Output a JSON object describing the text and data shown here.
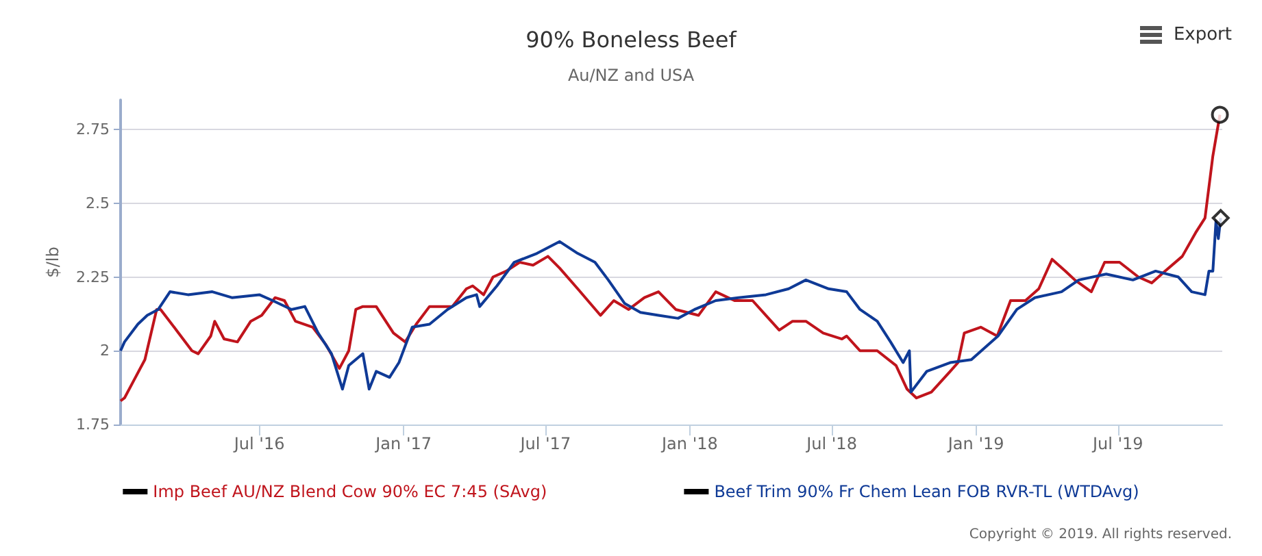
{
  "chart_data": {
    "type": "line",
    "title": "90% Boneless Beef",
    "subtitle": "Au/NZ and USA",
    "ylabel": "$/lb",
    "annotations": [
      "Export",
      "Copyright © 2019. All rights reserved."
    ],
    "xlim": [
      "2016-01-06",
      "2019-11-11"
    ],
    "xticks": [
      {
        "value": "2016-07-01",
        "label": "Jul '16"
      },
      {
        "value": "2017-01-01",
        "label": "Jan '17"
      },
      {
        "value": "2017-07-01",
        "label": "Jul '17"
      },
      {
        "value": "2018-01-01",
        "label": "Jan '18"
      },
      {
        "value": "2018-07-01",
        "label": "Jul '18"
      },
      {
        "value": "2019-01-01",
        "label": "Jan '19"
      },
      {
        "value": "2019-07-01",
        "label": "Jul '19"
      }
    ],
    "ylim": [
      1.75,
      2.85
    ],
    "yticks": [
      1.75,
      2,
      2.25,
      2.5,
      2.75
    ],
    "grid": "y",
    "legend": "bottom",
    "line_style": "solid",
    "series": [
      {
        "name": "Imp Beef AU/NZ Blend Cow 90% EC 7:45 (SAvg)",
        "color": "#c0141c",
        "x": [
          "2016-01-06",
          "2016-01-11",
          "2016-01-23",
          "2016-02-06",
          "2016-02-21",
          "2016-02-26",
          "2016-03-20",
          "2016-04-06",
          "2016-04-14",
          "2016-04-30",
          "2016-05-05",
          "2016-05-17",
          "2016-06-03",
          "2016-06-20",
          "2016-07-04",
          "2016-07-21",
          "2016-08-02",
          "2016-08-16",
          "2016-09-07",
          "2016-09-24",
          "2016-10-11",
          "2016-10-23",
          "2016-11-01",
          "2016-11-10",
          "2016-11-27",
          "2016-12-19",
          "2017-01-03",
          "2017-01-17",
          "2017-02-03",
          "2017-03-04",
          "2017-03-22",
          "2017-03-30",
          "2017-04-13",
          "2017-04-25",
          "2017-05-12",
          "2017-05-29",
          "2017-06-15",
          "2017-07-04",
          "2017-07-19",
          "2017-08-11",
          "2017-09-09",
          "2017-09-26",
          "2017-10-15",
          "2017-11-04",
          "2017-11-22",
          "2017-12-14",
          "2018-01-12",
          "2018-02-03",
          "2018-02-27",
          "2018-03-22",
          "2018-04-08",
          "2018-04-25",
          "2018-05-12",
          "2018-05-29",
          "2018-06-20",
          "2018-07-14",
          "2018-07-20",
          "2018-08-06",
          "2018-08-28",
          "2018-09-21",
          "2018-10-05",
          "2018-10-17",
          "2018-11-05",
          "2018-11-29",
          "2018-12-09",
          "2018-12-17",
          "2019-01-07",
          "2019-01-28",
          "2019-02-14",
          "2019-03-05",
          "2019-03-22",
          "2019-04-08",
          "2019-04-25",
          "2019-05-07",
          "2019-05-28",
          "2019-06-14",
          "2019-07-03",
          "2019-07-27",
          "2019-08-13",
          "2019-08-30",
          "2019-09-21",
          "2019-10-08",
          "2019-10-20",
          "2019-10-30",
          "2019-11-08"
        ],
        "values": [
          1.83,
          1.84,
          1.9,
          1.97,
          2.14,
          2.14,
          2.06,
          2,
          1.99,
          2.05,
          2.1,
          2.04,
          2.03,
          2.1,
          2.12,
          2.18,
          2.17,
          2.1,
          2.08,
          2.02,
          1.94,
          2,
          2.14,
          2.15,
          2.15,
          2.06,
          2.03,
          2.09,
          2.15,
          2.15,
          2.21,
          2.22,
          2.19,
          2.25,
          2.27,
          2.3,
          2.29,
          2.32,
          2.28,
          2.21,
          2.12,
          2.17,
          2.14,
          2.18,
          2.2,
          2.14,
          2.12,
          2.2,
          2.17,
          2.17,
          2.12,
          2.07,
          2.1,
          2.1,
          2.06,
          2.04,
          2.05,
          2,
          2,
          1.95,
          1.87,
          1.84,
          1.86,
          1.93,
          1.96,
          2.06,
          2.08,
          2.05,
          2.17,
          2.17,
          2.21,
          2.31,
          2.27,
          2.24,
          2.2,
          2.3,
          2.3,
          2.25,
          2.23,
          2.27,
          2.32,
          2.4,
          2.45,
          2.66,
          2.8
        ]
      },
      {
        "name": "Beef Trim 90% Fr Chem Lean FOB RVR-TL (WTDAvg)",
        "color": "#0f3a96",
        "x": [
          "2016-01-06",
          "2016-01-11",
          "2016-01-28",
          "2016-02-09",
          "2016-02-23",
          "2016-03-09",
          "2016-04-01",
          "2016-05-02",
          "2016-05-27",
          "2016-07-01",
          "2016-07-18",
          "2016-08-11",
          "2016-08-28",
          "2016-09-14",
          "2016-10-01",
          "2016-10-15",
          "2016-10-23",
          "2016-11-10",
          "2016-11-18",
          "2016-11-27",
          "2016-12-14",
          "2016-12-26",
          "2017-01-12",
          "2017-02-03",
          "2017-02-26",
          "2017-03-22",
          "2017-04-04",
          "2017-04-08",
          "2017-04-30",
          "2017-05-22",
          "2017-06-20",
          "2017-07-19",
          "2017-08-11",
          "2017-09-02",
          "2017-09-19",
          "2017-10-10",
          "2017-10-30",
          "2017-11-22",
          "2017-12-17",
          "2018-01-07",
          "2018-02-03",
          "2018-03-04",
          "2018-04-08",
          "2018-05-07",
          "2018-05-29",
          "2018-06-27",
          "2018-07-20",
          "2018-08-06",
          "2018-08-28",
          "2018-09-14",
          "2018-09-30",
          "2018-10-08",
          "2018-10-10",
          "2018-10-30",
          "2018-11-29",
          "2018-12-26",
          "2019-01-29",
          "2019-02-22",
          "2019-03-17",
          "2019-04-20",
          "2019-05-12",
          "2019-06-16",
          "2019-07-20",
          "2019-08-18",
          "2019-09-16",
          "2019-10-03",
          "2019-10-20",
          "2019-10-25",
          "2019-10-30",
          "2019-11-03",
          "2019-11-06",
          "2019-11-09"
        ],
        "values": [
          2,
          2.03,
          2.09,
          2.12,
          2.14,
          2.2,
          2.19,
          2.2,
          2.18,
          2.19,
          2.17,
          2.14,
          2.15,
          2.06,
          1.99,
          1.87,
          1.95,
          1.99,
          1.87,
          1.93,
          1.91,
          1.96,
          2.08,
          2.09,
          2.14,
          2.18,
          2.19,
          2.15,
          2.22,
          2.3,
          2.33,
          2.37,
          2.33,
          2.3,
          2.24,
          2.16,
          2.13,
          2.12,
          2.11,
          2.14,
          2.17,
          2.18,
          2.19,
          2.21,
          2.24,
          2.21,
          2.2,
          2.14,
          2.1,
          2.03,
          1.96,
          2,
          1.86,
          1.93,
          1.96,
          1.97,
          2.05,
          2.14,
          2.18,
          2.2,
          2.24,
          2.26,
          2.24,
          2.27,
          2.25,
          2.2,
          2.19,
          2.27,
          2.27,
          2.44,
          2.38,
          2.45
        ]
      },
      {
        "type": "scatter",
        "color": "#000000",
        "marker": "circle",
        "x": [
          "2019-11-08"
        ],
        "values": [
          2.8
        ]
      },
      {
        "type": "scatter",
        "color": "#000000",
        "marker": "diamond",
        "x": [
          "2019-11-09"
        ],
        "values": [
          2.45
        ]
      }
    ]
  }
}
